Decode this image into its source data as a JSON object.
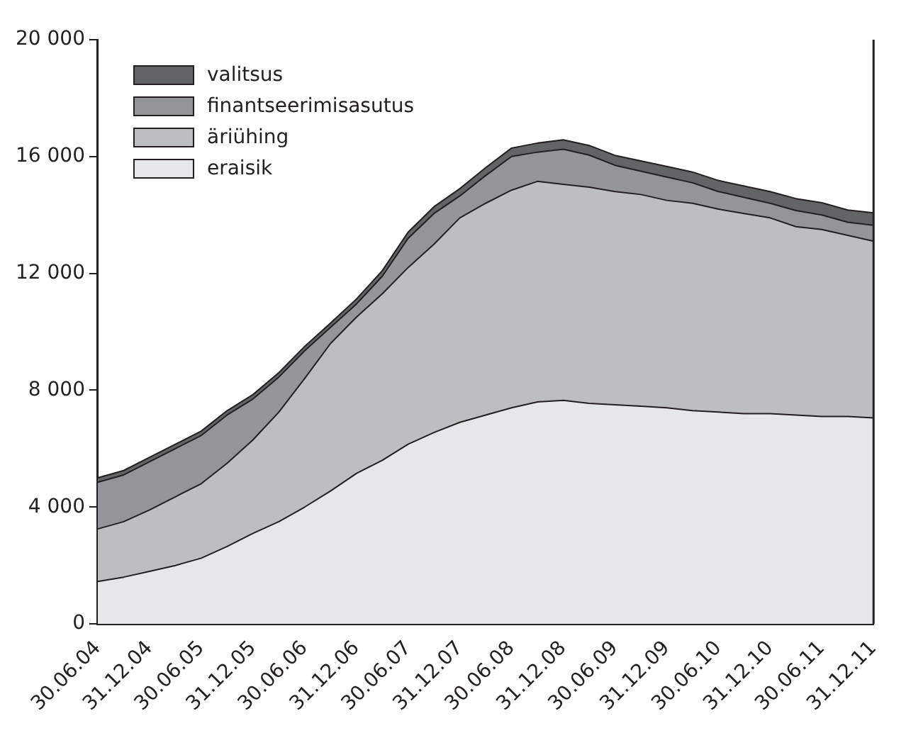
{
  "chart_data": {
    "type": "area",
    "stacked": true,
    "categories": [
      "30.06.04",
      null,
      "31.12.04",
      null,
      "30.06.05",
      null,
      "31.12.05",
      null,
      "30.06.06",
      null,
      "31.12.06",
      null,
      "30.06.07",
      null,
      "31.12.07",
      null,
      "30.06.08",
      null,
      "31.12.08",
      null,
      "30.06.09",
      null,
      "31.12.09",
      null,
      "30.06.10",
      null,
      "31.12.10",
      null,
      "30.06.11",
      null,
      "31.12.11"
    ],
    "series": [
      {
        "name": "eraisik",
        "color": "#e6e7e8",
        "values": [
          1450,
          1600,
          1800,
          2000,
          2250,
          2650,
          3100,
          3500,
          4000,
          4550,
          5150,
          5600,
          6150,
          6550,
          6900,
          7150,
          7400,
          7600,
          7650,
          7550,
          7500,
          7450,
          7400,
          7300,
          7250,
          7200,
          7200,
          7150,
          7100,
          7100,
          7050
        ]
      },
      {
        "name": "äriühing",
        "color": "#bcbec0",
        "values": [
          1800,
          1900,
          2100,
          2350,
          2550,
          2850,
          3200,
          3750,
          4400,
          5050,
          5350,
          5700,
          6050,
          6450,
          7000,
          7250,
          7450,
          7550,
          7400,
          7400,
          7300,
          7250,
          7100,
          7100,
          6950,
          6850,
          6700,
          6450,
          6400,
          6200,
          6050
        ]
      },
      {
        "name": "finantseerimisasutus",
        "color": "#939598",
        "values": [
          1600,
          1600,
          1650,
          1650,
          1650,
          1650,
          1400,
          1200,
          950,
          550,
          450,
          600,
          1000,
          1050,
          750,
          950,
          1150,
          1000,
          1200,
          1100,
          900,
          800,
          800,
          700,
          600,
          550,
          500,
          550,
          500,
          450,
          550
        ]
      },
      {
        "name": "valitsus",
        "color": "#636466",
        "values": [
          150,
          150,
          150,
          150,
          150,
          150,
          150,
          150,
          150,
          150,
          170,
          190,
          210,
          230,
          250,
          270,
          290,
          310,
          320,
          330,
          340,
          350,
          360,
          370,
          380,
          390,
          400,
          410,
          420,
          420,
          420
        ]
      }
    ],
    "ylim": [
      0,
      20000
    ],
    "yticks": [
      {
        "value": 0,
        "label": "0"
      },
      {
        "value": 4000,
        "label": "4 000"
      },
      {
        "value": 8000,
        "label": "8 000"
      },
      {
        "value": 12000,
        "label": "12 000"
      },
      {
        "value": 16000,
        "label": "16 000"
      },
      {
        "value": 20000,
        "label": "20 000"
      }
    ],
    "legend": "top left",
    "grid": false
  }
}
